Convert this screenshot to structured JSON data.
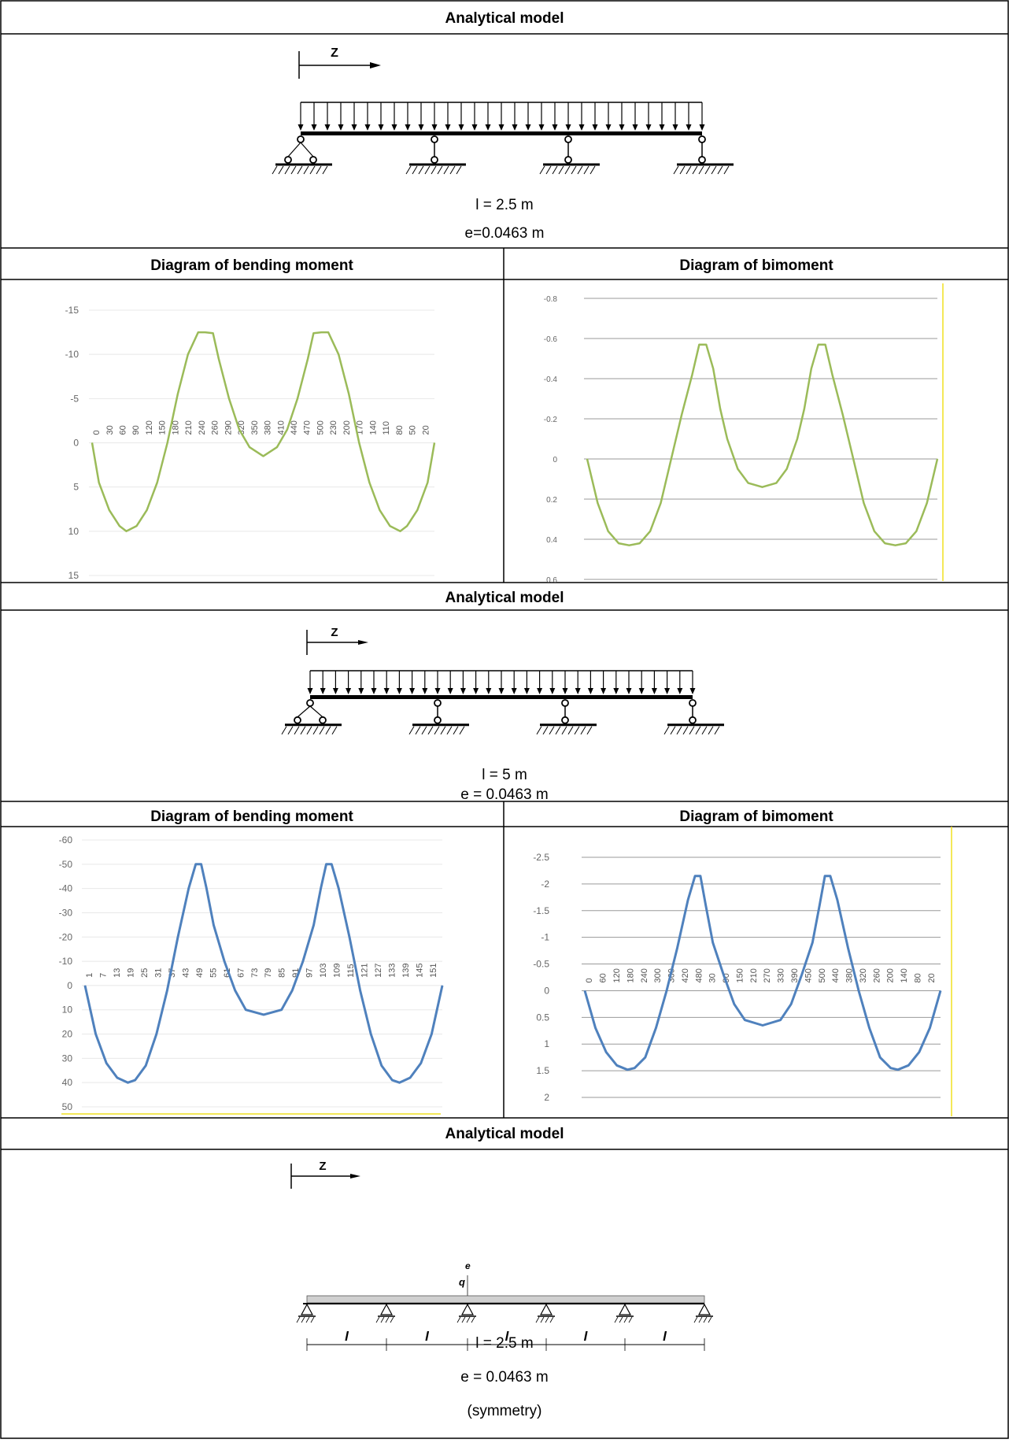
{
  "sections": [
    {
      "title": "Analytical model",
      "z_label": "Z",
      "params": [
        "l = 2.5 m",
        "e=0.0463 m"
      ]
    },
    {
      "title": "Analytical model",
      "z_label": "Z",
      "params": [
        "l = 5 m",
        "e = 0.0463 m"
      ]
    },
    {
      "title": "Analytical model",
      "z_label": "Z",
      "load_labels": {
        "q": "q",
        "e": "e"
      },
      "span_labels": [
        "l",
        "l",
        "l",
        "l",
        "l"
      ],
      "params": [
        "l = 2.5 m",
        "e = 0.0463 m",
        "(symmetry)"
      ]
    }
  ],
  "headings": {
    "bending_1": "Diagram of bending moment",
    "bimoment_1": "Diagram of bimoment",
    "bending_2": "Diagram of bending moment",
    "bimoment_2": "Diagram of bimoment"
  },
  "colors": {
    "green_curve": "#9bbb59",
    "blue_curve": "#4f81bd",
    "grid": "#c8c8c8",
    "yellow_line": "#f0e020"
  },
  "chart_data": [
    {
      "type": "line",
      "title": "Diagram of bending moment",
      "y_ticks": [
        "-15",
        "-10",
        "-5",
        "0",
        "5",
        "10",
        "15"
      ],
      "ylim": [
        15,
        -15
      ],
      "x_tick_labels": [
        "0",
        "30",
        "60",
        "90",
        "120",
        "150",
        "180",
        "210",
        "240",
        "260",
        "290",
        "320",
        "350",
        "380",
        "410",
        "440",
        "470",
        "500",
        "230",
        "200",
        "170",
        "140",
        "110",
        "80",
        "50",
        "20"
      ],
      "grid": false,
      "x": [
        0,
        0.02,
        0.05,
        0.08,
        0.1,
        0.13,
        0.16,
        0.19,
        0.22,
        0.25,
        0.28,
        0.31,
        0.33,
        0.353,
        0.37,
        0.4,
        0.43,
        0.46,
        0.5,
        0.54,
        0.57,
        0.6,
        0.63,
        0.647,
        0.67,
        0.69,
        0.72,
        0.75,
        0.78,
        0.81,
        0.84,
        0.87,
        0.9,
        0.92,
        0.95,
        0.98,
        1.0
      ],
      "y": [
        0,
        4.5,
        7.6,
        9.4,
        10,
        9.4,
        7.6,
        4.5,
        0,
        -5.5,
        -10,
        -12.5,
        -12.5,
        -12.4,
        -9.5,
        -5,
        -1.5,
        0.5,
        1.5,
        0.5,
        -1.5,
        -5,
        -9.5,
        -12.4,
        -12.5,
        -12.5,
        -10,
        -5.5,
        0,
        4.5,
        7.6,
        9.4,
        10,
        9.4,
        7.6,
        4.5,
        0
      ]
    },
    {
      "type": "line",
      "title": "Diagram of bimoment",
      "y_ticks": [
        "-0.8",
        "-0.6",
        "-0.4",
        "-0.2",
        "0",
        "0.2",
        "0.4",
        "0.6"
      ],
      "ylim": [
        0.6,
        -0.8
      ],
      "grid": true,
      "x": [
        0,
        0.03,
        0.06,
        0.09,
        0.12,
        0.15,
        0.18,
        0.21,
        0.24,
        0.27,
        0.3,
        0.32,
        0.34,
        0.36,
        0.38,
        0.4,
        0.43,
        0.46,
        0.5,
        0.54,
        0.57,
        0.6,
        0.62,
        0.64,
        0.66,
        0.68,
        0.7,
        0.73,
        0.76,
        0.79,
        0.82,
        0.85,
        0.88,
        0.91,
        0.94,
        0.97,
        1.0
      ],
      "y": [
        0,
        0.22,
        0.36,
        0.42,
        0.43,
        0.42,
        0.36,
        0.22,
        0,
        -0.22,
        -0.42,
        -0.57,
        -0.57,
        -0.45,
        -0.25,
        -0.1,
        0.05,
        0.12,
        0.14,
        0.12,
        0.05,
        -0.1,
        -0.25,
        -0.45,
        -0.57,
        -0.57,
        -0.42,
        -0.22,
        0,
        0.22,
        0.36,
        0.42,
        0.43,
        0.42,
        0.36,
        0.22,
        0
      ]
    },
    {
      "type": "line",
      "title": "Diagram of bending moment",
      "y_ticks": [
        "-60",
        "-50",
        "-40",
        "-30",
        "-20",
        "-10",
        "0",
        "10",
        "20",
        "30",
        "40",
        "50"
      ],
      "ylim": [
        50,
        -60
      ],
      "x_tick_labels": [
        "1",
        "7",
        "13",
        "19",
        "25",
        "31",
        "37",
        "43",
        "49",
        "55",
        "61",
        "67",
        "73",
        "79",
        "85",
        "91",
        "97",
        "103",
        "109",
        "115",
        "121",
        "127",
        "133",
        "139",
        "145",
        "151"
      ],
      "grid": false,
      "x": [
        0,
        0.03,
        0.06,
        0.09,
        0.12,
        0.14,
        0.17,
        0.2,
        0.23,
        0.26,
        0.29,
        0.31,
        0.325,
        0.34,
        0.36,
        0.39,
        0.42,
        0.45,
        0.5,
        0.55,
        0.58,
        0.61,
        0.64,
        0.66,
        0.675,
        0.69,
        0.71,
        0.74,
        0.77,
        0.8,
        0.83,
        0.86,
        0.88,
        0.91,
        0.94,
        0.97,
        1.0
      ],
      "y": [
        0,
        20,
        32,
        38,
        40,
        39,
        33,
        20,
        2,
        -20,
        -40,
        -50,
        -50,
        -40,
        -25,
        -10,
        2,
        10,
        12,
        10,
        2,
        -10,
        -25,
        -40,
        -50,
        -50,
        -40,
        -20,
        2,
        20,
        33,
        39,
        40,
        38,
        32,
        20,
        0
      ]
    },
    {
      "type": "line",
      "title": "Diagram of bimoment",
      "y_ticks": [
        "-2.5",
        "-2",
        "-1.5",
        "-1",
        "-0.5",
        "0",
        "0.5",
        "1",
        "1.5",
        "2"
      ],
      "ylim": [
        2.25,
        -2.75
      ],
      "x_tick_labels": [
        "0",
        "60",
        "120",
        "180",
        "240",
        "300",
        "360",
        "420",
        "480",
        "30",
        "90",
        "150",
        "210",
        "270",
        "330",
        "390",
        "450",
        "500",
        "440",
        "380",
        "320",
        "260",
        "200",
        "140",
        "80",
        "20"
      ],
      "grid": true,
      "x": [
        0,
        0.03,
        0.06,
        0.09,
        0.12,
        0.14,
        0.17,
        0.2,
        0.23,
        0.26,
        0.29,
        0.31,
        0.325,
        0.34,
        0.36,
        0.39,
        0.42,
        0.45,
        0.5,
        0.55,
        0.58,
        0.61,
        0.64,
        0.66,
        0.675,
        0.69,
        0.71,
        0.74,
        0.77,
        0.8,
        0.83,
        0.86,
        0.88,
        0.91,
        0.94,
        0.97,
        1.0
      ],
      "y": [
        0,
        0.7,
        1.15,
        1.4,
        1.48,
        1.45,
        1.25,
        0.7,
        0,
        -0.8,
        -1.7,
        -2.15,
        -2.15,
        -1.6,
        -0.9,
        -0.3,
        0.25,
        0.55,
        0.65,
        0.55,
        0.25,
        -0.3,
        -0.9,
        -1.6,
        -2.15,
        -2.15,
        -1.7,
        -0.8,
        0,
        0.7,
        1.25,
        1.45,
        1.48,
        1.4,
        1.15,
        0.7,
        0
      ]
    }
  ]
}
